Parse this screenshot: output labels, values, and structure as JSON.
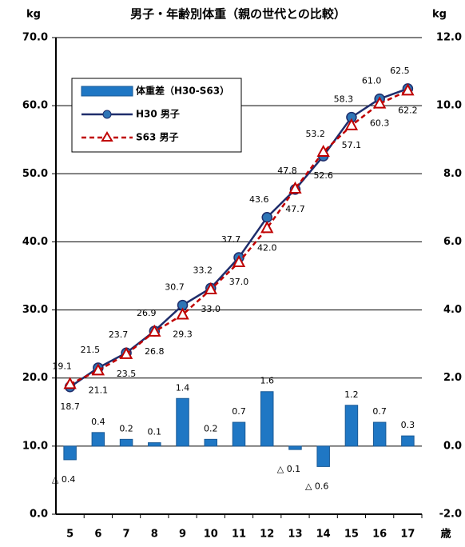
{
  "chart_data": {
    "type": "combo",
    "title": "男子・年齢別体重（親の世代との比較）",
    "y_label": "kg",
    "y2_label": "kg",
    "x_label": "歳",
    "categories": [
      "5",
      "6",
      "7",
      "8",
      "9",
      "10",
      "11",
      "12",
      "13",
      "14",
      "15",
      "16",
      "17"
    ],
    "series": [
      {
        "name": "体重差（H30-S63）",
        "type": "bar",
        "axis": "y2",
        "color": "#1f77c4",
        "values": [
          -0.4,
          0.4,
          0.2,
          0.1,
          1.4,
          0.2,
          0.7,
          1.6,
          -0.1,
          -0.6,
          1.2,
          0.7,
          0.3
        ],
        "value_labels": [
          "△ 0.4",
          "0.4",
          "0.2",
          "0.1",
          "1.4",
          "0.2",
          "0.7",
          "1.6",
          "△ 0.1",
          "△ 0.6",
          "1.2",
          "0.7",
          "0.3"
        ]
      },
      {
        "name": "H30 男子",
        "type": "line",
        "color": "#1f2d6b",
        "marker": "circle",
        "marker_color": "#2e75b6",
        "values": [
          18.7,
          21.5,
          23.7,
          26.9,
          30.7,
          33.2,
          37.7,
          43.6,
          47.7,
          52.6,
          58.3,
          61.0,
          62.5
        ],
        "value_labels": [
          "18.7",
          "21.5",
          "23.7",
          "26.9",
          "30.7",
          "33.2",
          "37.7",
          "43.6",
          "47.7",
          "52.6",
          "58.3",
          "61.0",
          "62.5"
        ]
      },
      {
        "name": "S63 男子",
        "type": "line",
        "color": "#c00000",
        "dashed": true,
        "marker": "triangle",
        "marker_color": "#ffffff",
        "values": [
          19.1,
          21.1,
          23.5,
          26.8,
          29.3,
          33.0,
          37.0,
          42.0,
          47.8,
          53.2,
          57.1,
          60.3,
          62.2
        ],
        "value_labels": [
          "19.1",
          "21.1",
          "23.5",
          "26.8",
          "29.3",
          "33.0",
          "37.0",
          "42.0",
          "47.8",
          "53.2",
          "57.1",
          "60.3",
          "62.2"
        ]
      }
    ],
    "ylim": [
      0,
      70
    ],
    "yticks": [
      {
        "value": 0,
        "label": "0.0"
      },
      {
        "value": 10,
        "label": "10.0"
      },
      {
        "value": 20,
        "label": "20.0"
      },
      {
        "value": 30,
        "label": "30.0"
      },
      {
        "value": 40,
        "label": "40.0"
      },
      {
        "value": 50,
        "label": "50.0"
      },
      {
        "value": 60,
        "label": "60.0"
      },
      {
        "value": 70,
        "label": "70.0"
      }
    ],
    "y2lim": [
      -2,
      12
    ],
    "y2ticks": [
      {
        "value": -2,
        "label": "-2.0"
      },
      {
        "value": 0,
        "label": "0.0"
      },
      {
        "value": 2,
        "label": "2.0"
      },
      {
        "value": 4,
        "label": "4.0"
      },
      {
        "value": 6,
        "label": "6.0"
      },
      {
        "value": 8,
        "label": "8.0"
      },
      {
        "value": 10,
        "label": "10.0"
      },
      {
        "value": 12,
        "label": "12.0"
      }
    ],
    "grid": true
  }
}
